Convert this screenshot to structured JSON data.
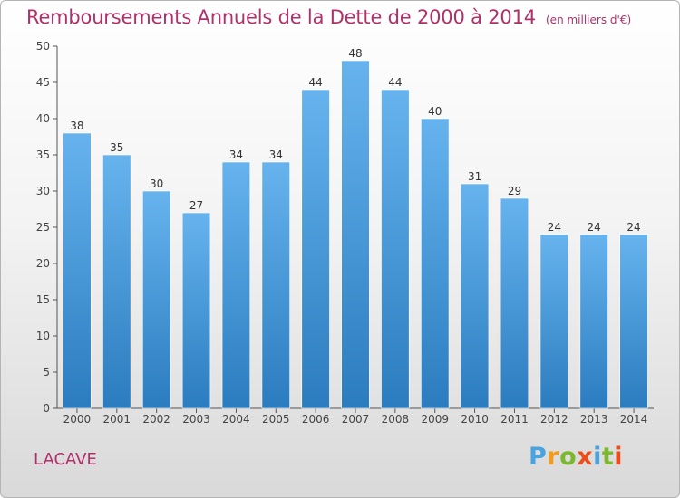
{
  "chart_data": {
    "type": "bar",
    "title": "Remboursements Annuels de la Dette de 2000 à 2014",
    "subtitle": "(en milliers d'€)",
    "categories": [
      "2000",
      "2001",
      "2002",
      "2003",
      "2004",
      "2005",
      "2006",
      "2007",
      "2008",
      "2009",
      "2010",
      "2011",
      "2012",
      "2013",
      "2014"
    ],
    "values": [
      38,
      35,
      30,
      27,
      34,
      34,
      44,
      48,
      44,
      40,
      31,
      29,
      24,
      24,
      24
    ],
    "ylim": [
      0,
      50
    ],
    "yticks": [
      0,
      5,
      10,
      15,
      20,
      25,
      30,
      35,
      40,
      45,
      50
    ],
    "grid": false,
    "legend": "none",
    "bar_color_top": "#66b3ee",
    "bar_color_bottom": "#2b7cbf"
  },
  "place": "LACAVE",
  "brand": {
    "letters": [
      "P",
      "r",
      "o",
      "x",
      "i",
      "t",
      "i"
    ],
    "colors": [
      "#4aa3df",
      "#f29b1d",
      "#7cb82f",
      "#e94e1b",
      "#4aa3df",
      "#7cb82f",
      "#e94e1b"
    ]
  },
  "colors": {
    "title": "#b0306a",
    "axis": "#555555"
  }
}
